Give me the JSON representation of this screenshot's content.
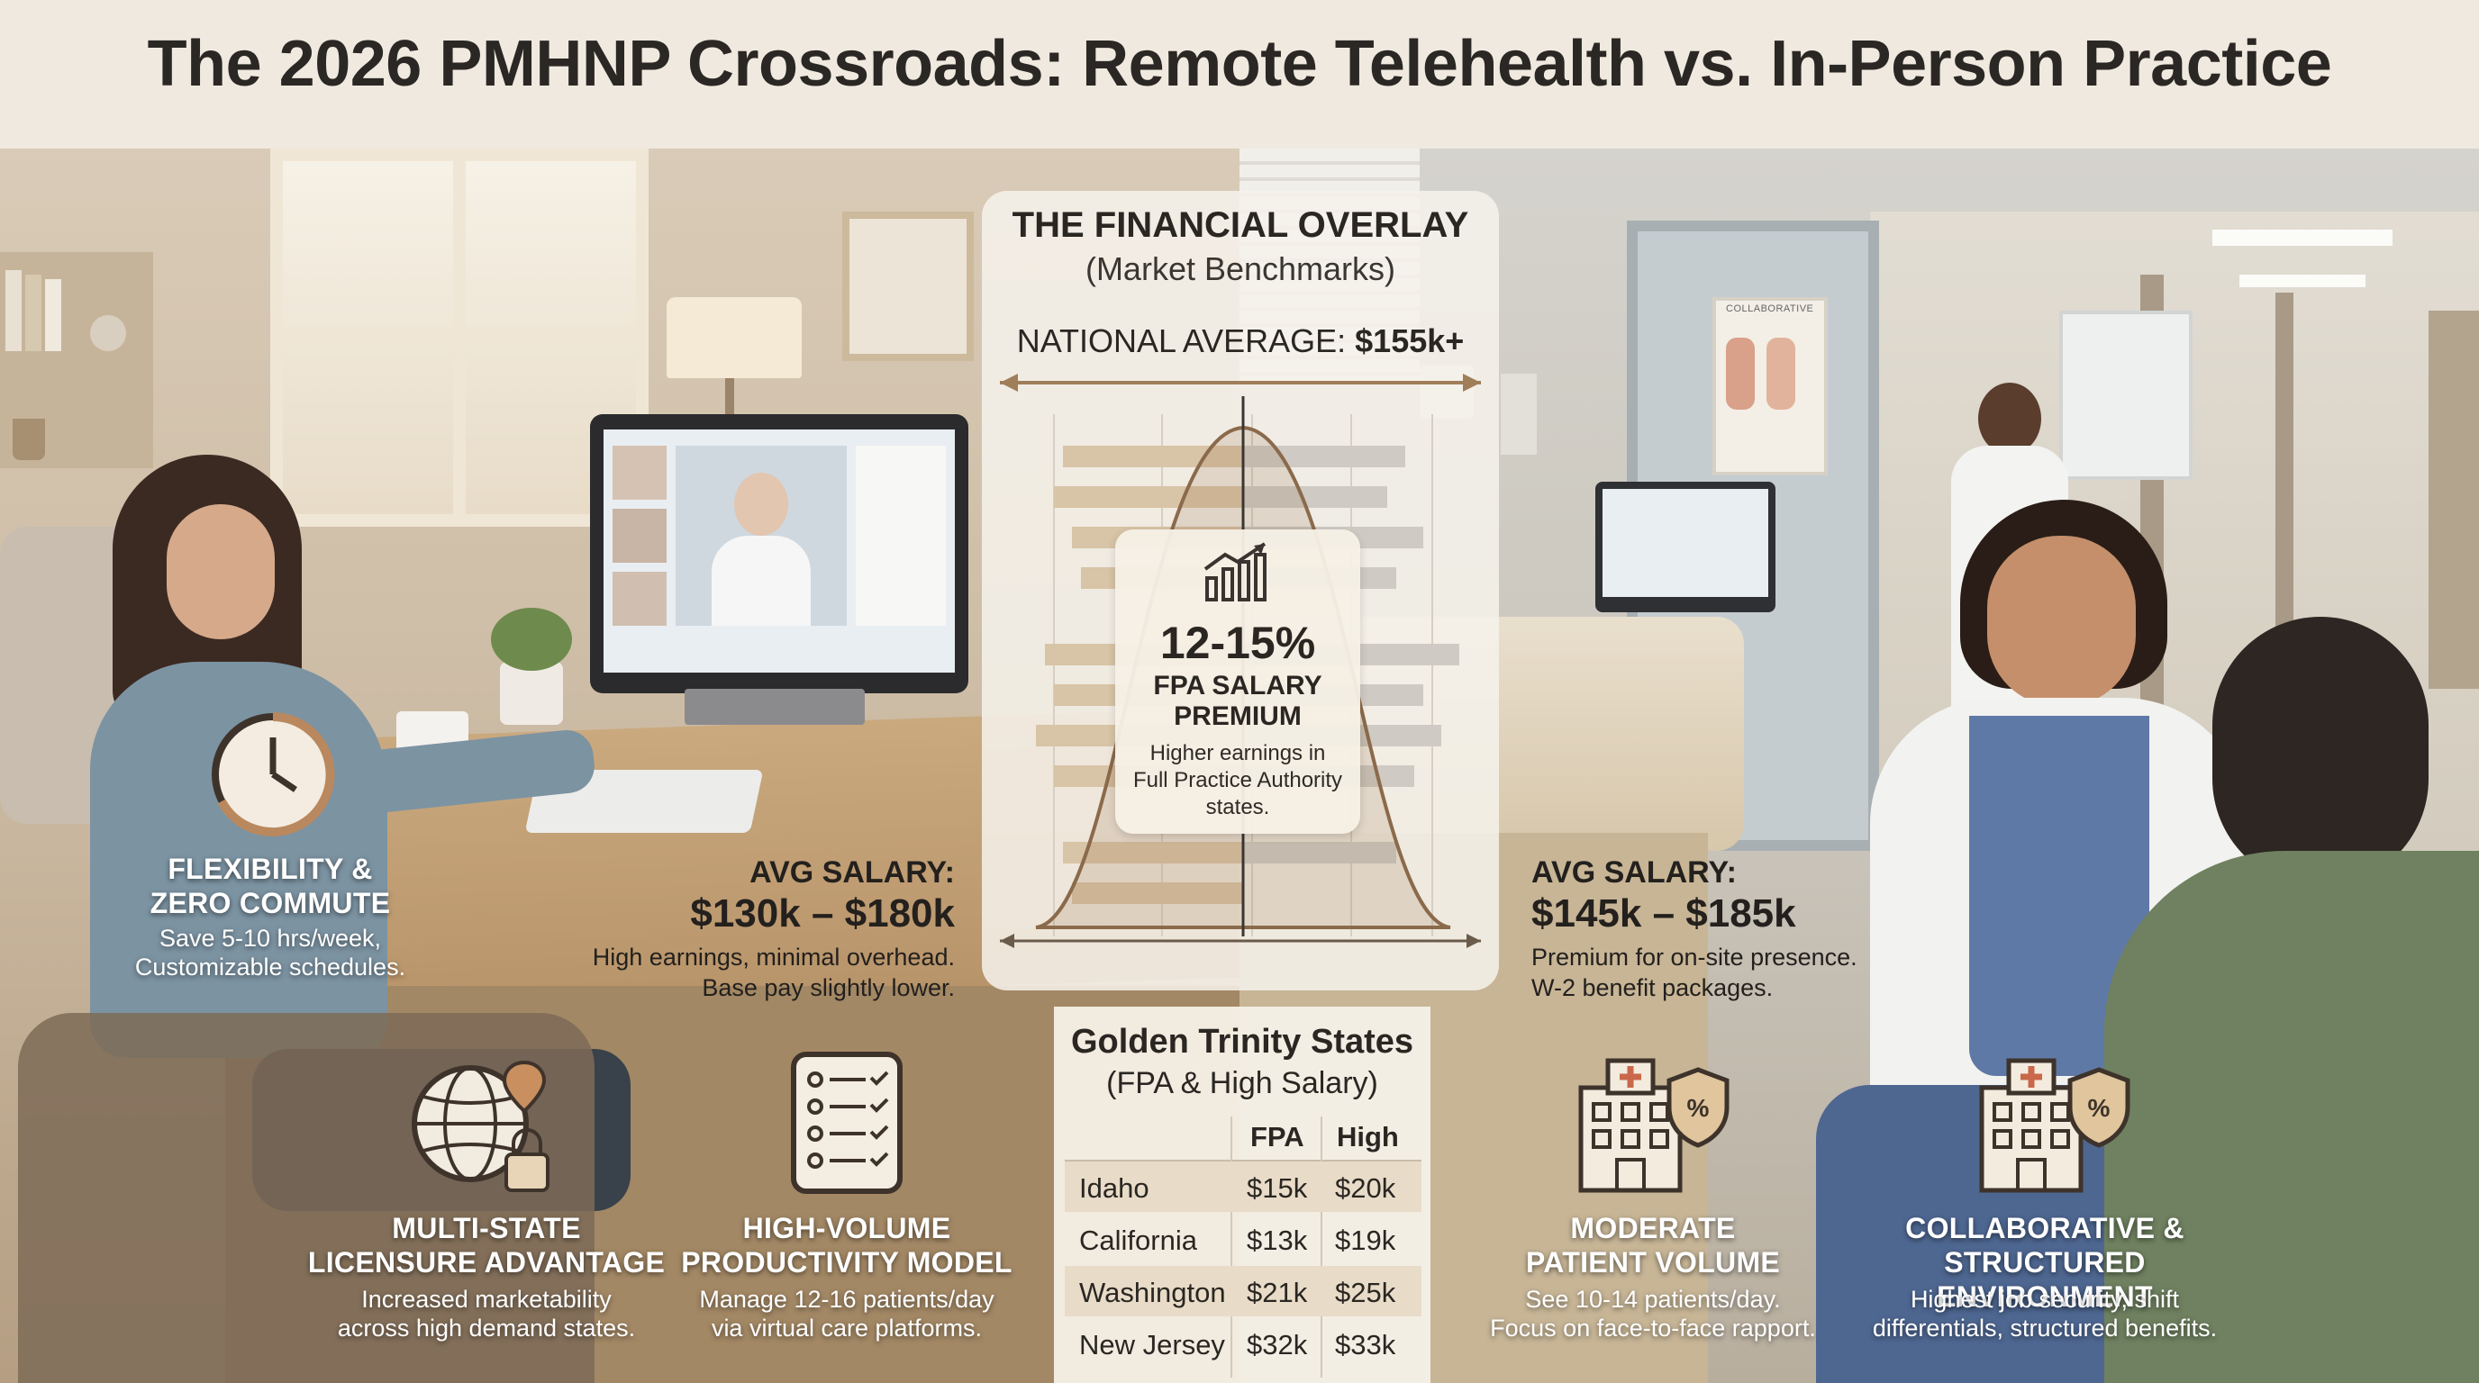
{
  "title": "The 2026 PMHNP Crossroads: Remote Telehealth vs. In-Person Practice",
  "financial_overlay": {
    "title": "THE FINANCIAL OVERLAY",
    "subtitle": "(Market Benchmarks)",
    "national_average_label": "NATIONAL AVERAGE:",
    "national_average_value": "$155k+",
    "premium_value": "12-15%",
    "premium_label_1": "FPA SALARY",
    "premium_label_2": "PREMIUM",
    "premium_desc_1": "Higher earnings in",
    "premium_desc_2": "Full Practice Authority",
    "premium_desc_3": "states."
  },
  "golden_trinity": {
    "title": "Golden Trinity States",
    "subtitle": "(FPA & High Salary)",
    "col_fpa": "FPA",
    "col_high": "High",
    "rows": [
      {
        "state": "Idaho",
        "fpa": "$15k",
        "high": "$20k"
      },
      {
        "state": "California",
        "fpa": "$13k",
        "high": "$19k"
      },
      {
        "state": "Washington",
        "fpa": "$21k",
        "high": "$25k"
      },
      {
        "state": "New Jersey",
        "fpa": "$32k",
        "high": "$33k"
      }
    ]
  },
  "remote": {
    "flexibility_title_1": "FLEXIBILITY &",
    "flexibility_title_2": "ZERO COMMUTE",
    "flexibility_desc_1": "Save 5-10 hrs/week,",
    "flexibility_desc_2": "Customizable schedules.",
    "salary_label": "AVG SALARY:",
    "salary_range": "$130k – $180k",
    "salary_desc_1": "High earnings, minimal overhead.",
    "salary_desc_2": "Base pay slightly lower.",
    "licensure_title_1": "MULTI-STATE",
    "licensure_title_2": "LICENSURE ADVANTAGE",
    "licensure_desc_1": "Increased marketability",
    "licensure_desc_2": "across high demand states.",
    "productivity_title_1": "HIGH-VOLUME",
    "productivity_title_2": "PRODUCTIVITY MODEL",
    "productivity_desc_1": "Manage 12-16 patients/day",
    "productivity_desc_2": "via virtual care platforms."
  },
  "in_person": {
    "salary_label": "AVG SALARY:",
    "salary_range": "$145k – $185k",
    "salary_desc_1": "Premium for on-site presence.",
    "salary_desc_2": "W-2 benefit packages.",
    "volume_title_1": "MODERATE",
    "volume_title_2": "PATIENT VOLUME",
    "volume_desc_1": "See 10-14 patients/day.",
    "volume_desc_2": "Focus on face-to-face rapport.",
    "collab_title_1": "COLLABORATIVE &",
    "collab_title_2": "STRUCTURED ENVIRONMENT",
    "collab_desc_1": "Highest job security, shift",
    "collab_desc_2": "differentials, structured benefits.",
    "poster_label": "COLLABORATIVE"
  }
}
